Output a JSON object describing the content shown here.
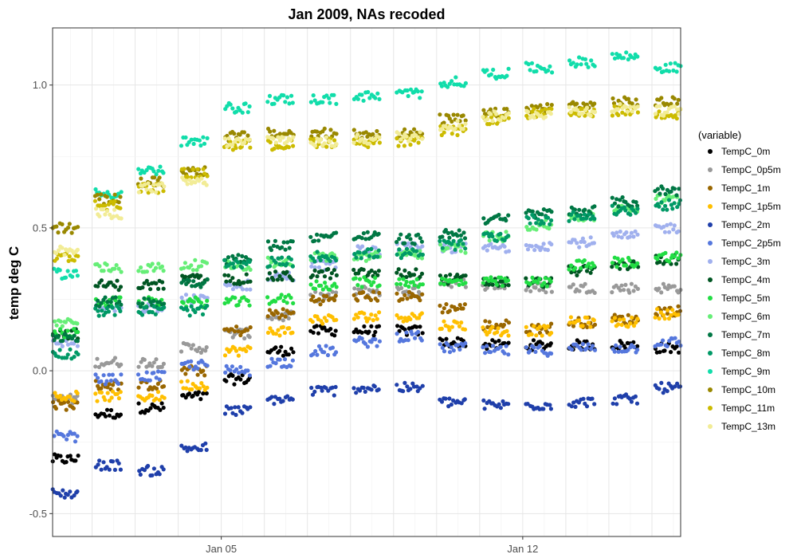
{
  "chart_data": {
    "type": "scatter",
    "title": "Jan 2009, NAs recoded",
    "xlabel": "",
    "ylabel": "temp deg C",
    "x_ticks": [
      "Jan 05",
      "Jan 12"
    ],
    "y_ticks": [
      "-0.5",
      "0.0",
      "0.5",
      "1.0"
    ],
    "ylim": [
      -0.58,
      1.2
    ],
    "xlim": [
      "2009-01-01 02:00",
      "2009-01-15 16:00"
    ],
    "grid": true,
    "legend_title": "(variable)",
    "legend_position": "right",
    "days": [
      "2009-01-01",
      "2009-01-02",
      "2009-01-03",
      "2009-01-04",
      "2009-01-05",
      "2009-01-06",
      "2009-01-07",
      "2009-01-08",
      "2009-01-09",
      "2009-01-10",
      "2009-01-11",
      "2009-01-12",
      "2009-01-13",
      "2009-01-14",
      "2009-01-15"
    ],
    "series": [
      {
        "name": "TempC_0m",
        "color": "#000000",
        "values": [
          -0.31,
          -0.15,
          -0.13,
          -0.09,
          -0.03,
          0.07,
          0.14,
          0.14,
          0.14,
          0.1,
          0.09,
          0.09,
          0.09,
          0.09,
          0.08
        ]
      },
      {
        "name": "TempC_0p5m",
        "color": "#999999",
        "values": [
          -0.1,
          0.03,
          0.03,
          0.08,
          0.13,
          0.19,
          0.26,
          0.28,
          0.28,
          0.31,
          0.3,
          0.29,
          0.29,
          0.29,
          0.29
        ]
      },
      {
        "name": "TempC_1m",
        "color": "#996600",
        "values": [
          -0.12,
          -0.05,
          -0.05,
          0.0,
          0.14,
          0.2,
          0.25,
          0.26,
          0.26,
          0.22,
          0.16,
          0.15,
          0.17,
          0.18,
          0.21
        ]
      },
      {
        "name": "TempC_1p5m",
        "color": "#FFBF00",
        "values": [
          -0.09,
          -0.09,
          -0.09,
          -0.05,
          0.07,
          0.14,
          0.18,
          0.19,
          0.19,
          0.16,
          0.14,
          0.14,
          0.17,
          0.17,
          0.2
        ]
      },
      {
        "name": "TempC_2m",
        "color": "#1F3FAA",
        "values": [
          -0.43,
          -0.33,
          -0.35,
          -0.27,
          -0.14,
          -0.1,
          -0.07,
          -0.06,
          -0.06,
          -0.11,
          -0.12,
          -0.12,
          -0.11,
          -0.1,
          -0.06
        ]
      },
      {
        "name": "TempC_2p5m",
        "color": "#5577DD",
        "values": [
          -0.23,
          -0.03,
          -0.02,
          0.02,
          0.0,
          0.03,
          0.07,
          0.1,
          0.12,
          0.08,
          0.07,
          0.07,
          0.08,
          0.08,
          0.1
        ]
      },
      {
        "name": "TempC_3m",
        "color": "#A0B0EE",
        "values": [
          0.1,
          0.22,
          0.22,
          0.25,
          0.3,
          0.33,
          0.37,
          0.42,
          0.43,
          0.43,
          0.43,
          0.44,
          0.45,
          0.47,
          0.5
        ]
      },
      {
        "name": "TempC_4m",
        "color": "#005522",
        "values": [
          0.13,
          0.3,
          0.3,
          0.32,
          0.32,
          0.33,
          0.34,
          0.34,
          0.34,
          0.32,
          0.31,
          0.31,
          0.35,
          0.37,
          0.39
        ]
      },
      {
        "name": "TempC_5m",
        "color": "#22DD44",
        "values": [
          0.13,
          0.24,
          0.24,
          0.24,
          0.24,
          0.25,
          0.3,
          0.31,
          0.31,
          0.31,
          0.31,
          0.31,
          0.37,
          0.38,
          0.4
        ]
      },
      {
        "name": "TempC_6m",
        "color": "#66EE77",
        "values": [
          0.17,
          0.36,
          0.36,
          0.37,
          0.37,
          0.38,
          0.4,
          0.4,
          0.41,
          0.43,
          0.47,
          0.51,
          0.54,
          0.57,
          0.6
        ]
      },
      {
        "name": "TempC_7m",
        "color": "#007744",
        "values": [
          0.12,
          0.24,
          0.24,
          0.31,
          0.39,
          0.44,
          0.47,
          0.47,
          0.46,
          0.48,
          0.53,
          0.55,
          0.56,
          0.59,
          0.63
        ]
      },
      {
        "name": "TempC_8m",
        "color": "#009966",
        "values": [
          0.06,
          0.21,
          0.21,
          0.21,
          0.37,
          0.38,
          0.4,
          0.41,
          0.41,
          0.44,
          0.47,
          0.53,
          0.54,
          0.56,
          0.58
        ]
      },
      {
        "name": "TempC_9m",
        "color": "#11DDAA",
        "values": [
          0.34,
          0.62,
          0.7,
          0.8,
          0.92,
          0.95,
          0.95,
          0.96,
          0.97,
          1.01,
          1.04,
          1.06,
          1.08,
          1.1,
          1.06
        ]
      },
      {
        "name": "TempC_10m",
        "color": "#998800",
        "values": [
          0.5,
          0.6,
          0.66,
          0.7,
          0.82,
          0.83,
          0.83,
          0.83,
          0.83,
          0.88,
          0.9,
          0.92,
          0.93,
          0.94,
          0.94
        ]
      },
      {
        "name": "TempC_11m",
        "color": "#CCBB00",
        "values": [
          0.4,
          0.58,
          0.64,
          0.69,
          0.79,
          0.79,
          0.8,
          0.8,
          0.8,
          0.84,
          0.88,
          0.9,
          0.9,
          0.91,
          0.9
        ]
      },
      {
        "name": "TempC_13m",
        "color": "#F2EC96",
        "values": [
          0.42,
          0.55,
          0.64,
          0.66,
          0.8,
          0.81,
          0.8,
          0.81,
          0.82,
          0.86,
          0.89,
          0.9,
          0.91,
          0.92,
          0.91
        ]
      }
    ]
  }
}
